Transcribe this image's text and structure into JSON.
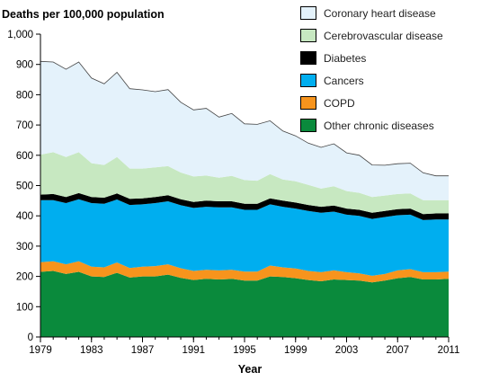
{
  "chart_data": {
    "type": "area",
    "stacked": true,
    "ylabel": "Deaths per 100,000 population",
    "xlabel": "Year",
    "ylim": [
      0,
      1000
    ],
    "xlim": [
      1979,
      2011
    ],
    "y_ticks": [
      "0",
      "100",
      "200",
      "300",
      "400",
      "500",
      "600",
      "700",
      "800",
      "900",
      "1,000"
    ],
    "x_ticks": [
      "1979",
      "1983",
      "1987",
      "1991",
      "1995",
      "1999",
      "2003",
      "2007",
      "2011"
    ],
    "legend_position": "top-right",
    "grid": false,
    "x": [
      1979,
      1980,
      1981,
      1982,
      1983,
      1984,
      1985,
      1986,
      1987,
      1988,
      1989,
      1990,
      1991,
      1992,
      1993,
      1994,
      1995,
      1996,
      1997,
      1998,
      1999,
      2000,
      2001,
      2002,
      2003,
      2004,
      2005,
      2006,
      2007,
      2008,
      2009,
      2010,
      2011
    ],
    "series": [
      {
        "name": "Other chronic diseases",
        "color": "#0a8a3c",
        "values": [
          215,
          218,
          208,
          215,
          200,
          198,
          212,
          196,
          200,
          200,
          206,
          195,
          188,
          192,
          190,
          192,
          186,
          186,
          200,
          198,
          194,
          188,
          184,
          190,
          188,
          186,
          180,
          186,
          194,
          198,
          190,
          190,
          192
        ]
      },
      {
        "name": "COPD",
        "color": "#f7941d",
        "values": [
          32,
          32,
          32,
          35,
          32,
          32,
          34,
          32,
          32,
          34,
          34,
          32,
          30,
          30,
          30,
          30,
          30,
          30,
          36,
          32,
          32,
          30,
          30,
          30,
          26,
          24,
          22,
          22,
          26,
          26,
          24,
          24,
          24
        ]
      },
      {
        "name": "Cancers",
        "color": "#00aeef",
        "values": [
          205,
          202,
          202,
          205,
          210,
          210,
          208,
          208,
          206,
          208,
          208,
          208,
          208,
          208,
          208,
          206,
          204,
          204,
          202,
          200,
          198,
          198,
          196,
          194,
          190,
          190,
          188,
          188,
          182,
          180,
          172,
          174,
          172
        ]
      },
      {
        "name": "Diabetes",
        "color": "#000000",
        "values": [
          18,
          20,
          20,
          20,
          20,
          20,
          20,
          20,
          20,
          20,
          20,
          20,
          20,
          20,
          20,
          20,
          20,
          20,
          20,
          20,
          20,
          20,
          20,
          20,
          20,
          20,
          20,
          20,
          20,
          20,
          20,
          20,
          20
        ]
      },
      {
        "name": "Cerebrovascular disease",
        "color": "#c7e8c1",
        "values": [
          132,
          138,
          132,
          135,
          112,
          108,
          120,
          100,
          98,
          98,
          96,
          88,
          84,
          83,
          78,
          84,
          78,
          76,
          80,
          70,
          70,
          66,
          60,
          64,
          58,
          56,
          52,
          51,
          50,
          50,
          46,
          44,
          44
        ]
      },
      {
        "name": "Coronary heart disease",
        "color": "#e4f2fb",
        "values": [
          308,
          298,
          290,
          298,
          281,
          268,
          280,
          264,
          260,
          250,
          253,
          232,
          220,
          222,
          200,
          206,
          186,
          186,
          176,
          160,
          150,
          138,
          136,
          140,
          126,
          124,
          106,
          100,
          100,
          100,
          90,
          80,
          80
        ]
      }
    ]
  }
}
